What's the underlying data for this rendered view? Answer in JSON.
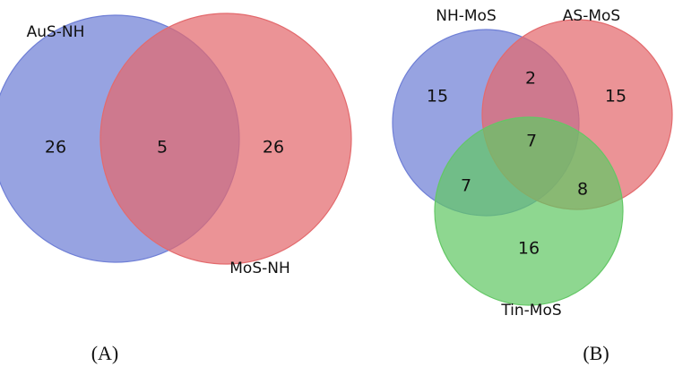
{
  "panels": [
    {
      "label": "(A)",
      "sets": [
        {
          "name": "AuS-NH",
          "color": "#6f7fd6"
        },
        {
          "name": "MoS-NH",
          "color": "#e36a6d"
        }
      ],
      "regions": [
        26,
        5,
        26
      ]
    },
    {
      "label": "(B)",
      "sets": [
        {
          "name": "NH-MoS",
          "color": "#6f7fd6"
        },
        {
          "name": "AS-MoS",
          "color": "#e36a6d"
        },
        {
          "name": "Tin-MoS",
          "color": "#63c765"
        }
      ],
      "regions": [
        15,
        2,
        15,
        7,
        7,
        8,
        16
      ]
    }
  ]
}
